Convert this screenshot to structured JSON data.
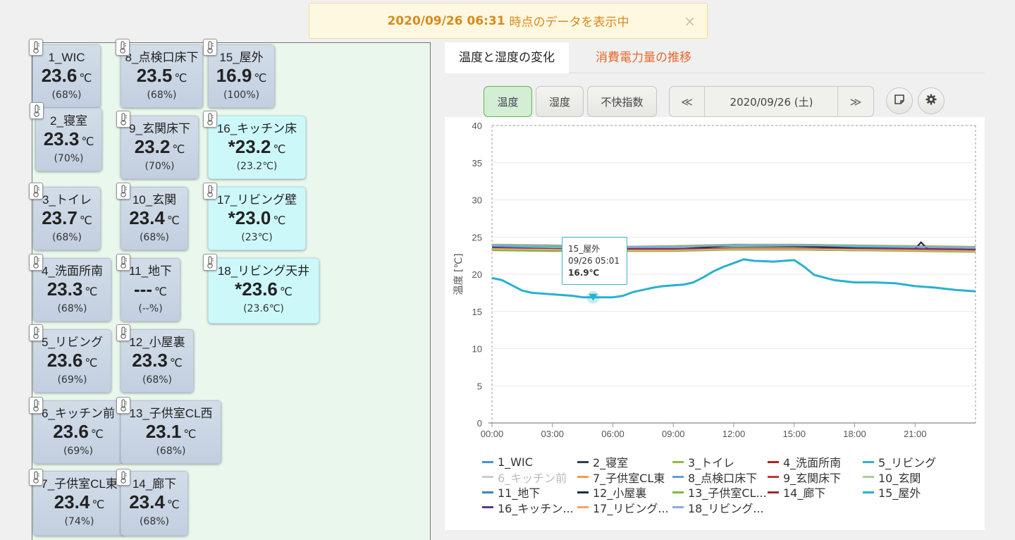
{
  "banner": {
    "timestamp": "2020/09/26 06:31",
    "text": "時点のデータを表示中",
    "close": "×"
  },
  "sensors": [
    {
      "name": "1_WIC",
      "temp": "23.6",
      "unit": "℃",
      "hum": "(68%)"
    },
    {
      "name": "2_寝室",
      "temp": "23.3",
      "unit": "℃",
      "hum": "(70%)"
    },
    {
      "name": "3_トイレ",
      "temp": "23.7",
      "unit": "℃",
      "hum": "(68%)"
    },
    {
      "name": "4_洗面所南",
      "temp": "23.3",
      "unit": "℃",
      "hum": "(68%)"
    },
    {
      "name": "5_リビング",
      "temp": "23.6",
      "unit": "℃",
      "hum": "(69%)"
    },
    {
      "name": "6_キッチン前",
      "temp": "23.6",
      "unit": "℃",
      "hum": "(69%)"
    },
    {
      "name": "7_子供室CL東",
      "temp": "23.4",
      "unit": "℃",
      "hum": "(74%)"
    },
    {
      "name": "8_点検口床下",
      "temp": "23.5",
      "unit": "℃",
      "hum": "(68%)"
    },
    {
      "name": "9_玄関床下",
      "temp": "23.2",
      "unit": "℃",
      "hum": "(70%)"
    },
    {
      "name": "10_玄関",
      "temp": "23.4",
      "unit": "℃",
      "hum": "(68%)"
    },
    {
      "name": "11_地下",
      "temp": "---",
      "unit": "℃",
      "hum": "(--%)"
    },
    {
      "name": "12_小屋裏",
      "temp": "23.3",
      "unit": "℃",
      "hum": "(68%)"
    },
    {
      "name": "13_子供室CL西",
      "temp": "23.1",
      "unit": "℃",
      "hum": "(68%)"
    },
    {
      "name": "14_廊下",
      "temp": "23.4",
      "unit": "℃",
      "hum": "(68%)"
    },
    {
      "name": "15_屋外",
      "temp": "16.9",
      "unit": "℃",
      "hum": "(100%)"
    },
    {
      "name": "16_キッチン床",
      "temp": "*23.2",
      "unit": "℃",
      "hum": "(23.2℃)"
    },
    {
      "name": "17_リビング壁",
      "temp": "*23.0",
      "unit": "℃",
      "hum": "(23℃)"
    },
    {
      "name": "18_リビング天井",
      "temp": "*23.6",
      "unit": "℃",
      "hum": "(23.6℃)"
    }
  ],
  "tabs": [
    {
      "label": "温度と湿度の変化"
    },
    {
      "label": "消費電力量の推移"
    }
  ],
  "toolbar": {
    "temp": "温度",
    "humidity": "湿度",
    "discomfort": "不快指数",
    "prev": "≪",
    "date": "2020/09/26 (土)",
    "next": "≫"
  },
  "tooltip": {
    "name": "15_屋外",
    "time": "09/26 05:01",
    "value": "16.9℃"
  },
  "chart_data": {
    "type": "line",
    "ylabel": "温度 [℃]",
    "ylim": [
      0,
      40
    ],
    "yticks": [
      "0",
      "5",
      "10",
      "15",
      "20",
      "25",
      "30",
      "35",
      "40"
    ],
    "xticks": [
      "00:00",
      "03:00",
      "06:00",
      "09:00",
      "12:00",
      "15:00",
      "18:00",
      "21:00"
    ],
    "xlim": [
      0,
      24
    ],
    "series": [
      {
        "name": "1_WIC",
        "color": "#4a90d9",
        "visible": true,
        "x": [
          0,
          3,
          6,
          9,
          12,
          15,
          18,
          21,
          24
        ],
        "y": [
          23.8,
          23.7,
          23.6,
          23.6,
          23.8,
          23.8,
          23.7,
          23.6,
          23.5
        ]
      },
      {
        "name": "2_寝室",
        "color": "#2c3e50",
        "visible": true,
        "x": [
          0,
          3,
          6,
          9,
          12,
          15,
          18,
          21,
          24
        ],
        "y": [
          23.5,
          23.4,
          23.3,
          23.2,
          23.6,
          23.6,
          23.5,
          23.4,
          23.3
        ]
      },
      {
        "name": "3_トイレ",
        "color": "#8fbc45",
        "visible": true,
        "x": [
          0,
          3,
          6,
          9,
          12,
          15,
          18,
          21,
          24
        ],
        "y": [
          24.0,
          23.9,
          23.7,
          23.8,
          24.0,
          24.0,
          23.9,
          23.8,
          23.7
        ]
      },
      {
        "name": "4_洗面所南",
        "color": "#b22222",
        "visible": true,
        "x": [
          0,
          3,
          6,
          9,
          12,
          15,
          18,
          21,
          24
        ],
        "y": [
          23.4,
          23.3,
          23.3,
          23.3,
          23.5,
          23.5,
          23.4,
          23.3,
          23.2
        ]
      },
      {
        "name": "5_リビング",
        "color": "#2bb5c8",
        "visible": true,
        "x": [
          0,
          3,
          6,
          9,
          12,
          15,
          18,
          21,
          24
        ],
        "y": [
          23.7,
          23.6,
          23.6,
          23.6,
          23.8,
          23.8,
          23.7,
          23.6,
          23.5
        ]
      },
      {
        "name": "6_キッチン前",
        "color": "#cccccc",
        "visible": false,
        "x": [],
        "y": []
      },
      {
        "name": "7_子供室CL東",
        "color": "#f39c4a",
        "visible": true,
        "x": [
          0,
          3,
          6,
          9,
          12,
          15,
          18,
          21,
          24
        ],
        "y": [
          23.3,
          23.3,
          23.4,
          23.4,
          23.6,
          23.6,
          23.5,
          23.4,
          23.3
        ]
      },
      {
        "name": "8_点検口床下",
        "color": "#6b9bd9",
        "visible": true,
        "x": [
          0,
          3,
          6,
          9,
          12,
          15,
          18,
          21,
          24
        ],
        "y": [
          23.6,
          23.5,
          23.5,
          23.5,
          23.6,
          23.6,
          23.5,
          23.5,
          23.4
        ]
      },
      {
        "name": "9_玄関床下",
        "color": "#c0392b",
        "visible": true,
        "x": [
          0,
          3,
          6,
          9,
          12,
          15,
          18,
          21,
          24
        ],
        "y": [
          23.3,
          23.2,
          23.2,
          23.2,
          23.3,
          23.3,
          23.2,
          23.2,
          23.1
        ]
      },
      {
        "name": "10_玄関",
        "color": "#a8d08d",
        "visible": true,
        "x": [
          0,
          3,
          6,
          9,
          12,
          15,
          18,
          21,
          24
        ],
        "y": [
          23.6,
          23.5,
          23.4,
          23.4,
          23.6,
          23.6,
          23.5,
          23.4,
          23.3
        ]
      },
      {
        "name": "11_地下",
        "color": "#3b83d0",
        "visible": true,
        "x": [],
        "y": []
      },
      {
        "name": "12_小屋裏",
        "color": "#1f2d3d",
        "visible": true,
        "x": [
          0,
          3,
          6,
          9,
          12,
          15,
          18,
          21,
          21.3,
          21.6,
          24
        ],
        "y": [
          23.4,
          23.3,
          23.3,
          23.3,
          23.9,
          23.8,
          23.5,
          23.4,
          24.3,
          23.4,
          23.3
        ]
      },
      {
        "name": "13_子供室CL...",
        "color": "#7fb841",
        "visible": true,
        "x": [
          0,
          3,
          6,
          9,
          12,
          15,
          18,
          21,
          24
        ],
        "y": [
          23.2,
          23.1,
          23.1,
          23.1,
          23.3,
          23.3,
          23.2,
          23.1,
          23.0
        ]
      },
      {
        "name": "14_廊下",
        "color": "#a52a2a",
        "visible": true,
        "x": [
          0,
          3,
          6,
          9,
          12,
          15,
          18,
          21,
          24
        ],
        "y": [
          23.5,
          23.4,
          23.4,
          23.4,
          23.5,
          23.5,
          23.4,
          23.4,
          23.3
        ]
      },
      {
        "name": "15_屋外",
        "color": "#29b0d0",
        "visible": true,
        "x": [
          0,
          0.5,
          1,
          1.5,
          2,
          3,
          4,
          4.5,
          5,
          5.5,
          6,
          6.5,
          7,
          7.5,
          8,
          8.5,
          9,
          9.5,
          10,
          10.5,
          11,
          11.5,
          12,
          12.5,
          13,
          14,
          14.5,
          15,
          15.5,
          16,
          17,
          18,
          19,
          20,
          21,
          22,
          23,
          24
        ],
        "y": [
          19.5,
          19.2,
          18.5,
          17.8,
          17.5,
          17.3,
          17.1,
          16.9,
          16.9,
          16.9,
          16.9,
          17.1,
          17.6,
          17.9,
          18.2,
          18.4,
          18.5,
          18.6,
          18.9,
          19.6,
          20.4,
          21.0,
          21.5,
          22.0,
          21.8,
          21.7,
          21.8,
          21.9,
          21.0,
          19.9,
          19.2,
          18.9,
          18.9,
          18.8,
          18.4,
          18.2,
          17.9,
          17.7
        ]
      },
      {
        "name": "16_キッチン...",
        "color": "#5b3a8c",
        "visible": true,
        "x": [
          0,
          3,
          6,
          9,
          12,
          15,
          18,
          21,
          24
        ],
        "y": [
          23.6,
          23.4,
          23.3,
          23.3,
          23.5,
          23.5,
          23.4,
          23.3,
          23.2
        ]
      },
      {
        "name": "17_リビング...",
        "color": "#f4a460",
        "visible": true,
        "x": [
          0,
          3,
          6,
          9,
          12,
          15,
          18,
          21,
          24
        ],
        "y": [
          23.4,
          23.3,
          23.2,
          23.2,
          23.4,
          23.4,
          23.3,
          23.2,
          23.1
        ]
      },
      {
        "name": "18_リビング...",
        "color": "#8aa8e0",
        "visible": true,
        "x": [
          0,
          3,
          6,
          9,
          12,
          15,
          18,
          21,
          24
        ],
        "y": [
          23.9,
          23.8,
          23.7,
          23.7,
          23.9,
          23.9,
          23.8,
          23.7,
          23.6
        ]
      }
    ]
  }
}
